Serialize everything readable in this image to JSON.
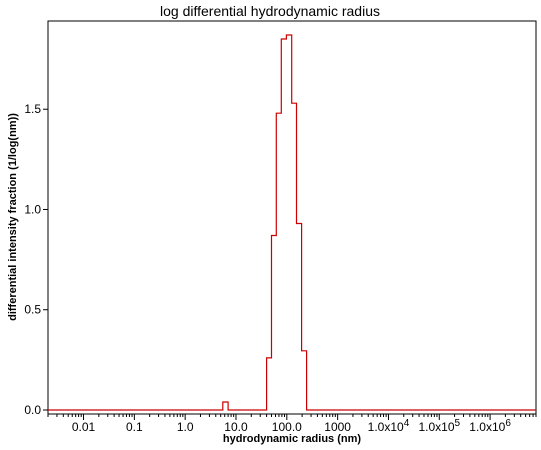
{
  "chart_data": {
    "type": "line",
    "title": "log differential hydrodynamic radius",
    "xlabel": "hydrodynamic radius (nm)",
    "ylabel": "differential intensity fraction (1/log(nm))",
    "xscale": "log",
    "xlim": [
      0.002,
      8000000
    ],
    "ylim": [
      -0.02,
      1.94
    ],
    "grid": false,
    "legend": "none",
    "x_ticks": [
      {
        "value": 0.01,
        "label": "0.01"
      },
      {
        "value": 0.1,
        "label": "0.1"
      },
      {
        "value": 1,
        "label": "1.0"
      },
      {
        "value": 10,
        "label": "10.0"
      },
      {
        "value": 100,
        "label": "100.0"
      },
      {
        "value": 1000,
        "label": "1000"
      },
      {
        "value": 10000,
        "label": "1.0x10",
        "sup": "4"
      },
      {
        "value": 100000,
        "label": "1.0x10",
        "sup": "5"
      },
      {
        "value": 1000000,
        "label": "1.0x10",
        "sup": "6"
      }
    ],
    "y_ticks": [
      {
        "value": 0.0,
        "label": "0.0"
      },
      {
        "value": 0.5,
        "label": "0.5"
      },
      {
        "value": 1.0,
        "label": "1.0"
      },
      {
        "value": 1.5,
        "label": "1.5"
      }
    ],
    "series": [
      {
        "color": "#cc0000",
        "step": true,
        "x": [
          0.002,
          5.5,
          5.5,
          7.0,
          7.0,
          40,
          40,
          50,
          50,
          62,
          62,
          78,
          78,
          98,
          98,
          125,
          125,
          155,
          155,
          195,
          195,
          245,
          245,
          305,
          305,
          8000000
        ],
        "y": [
          0.0,
          0.0,
          0.04,
          0.04,
          0.0,
          0.0,
          0.26,
          0.26,
          0.87,
          0.87,
          1.48,
          1.48,
          1.85,
          1.85,
          1.87,
          1.87,
          1.53,
          1.53,
          0.93,
          0.93,
          0.295,
          0.295,
          0.0,
          0.0,
          0.0,
          0.0
        ]
      }
    ]
  }
}
